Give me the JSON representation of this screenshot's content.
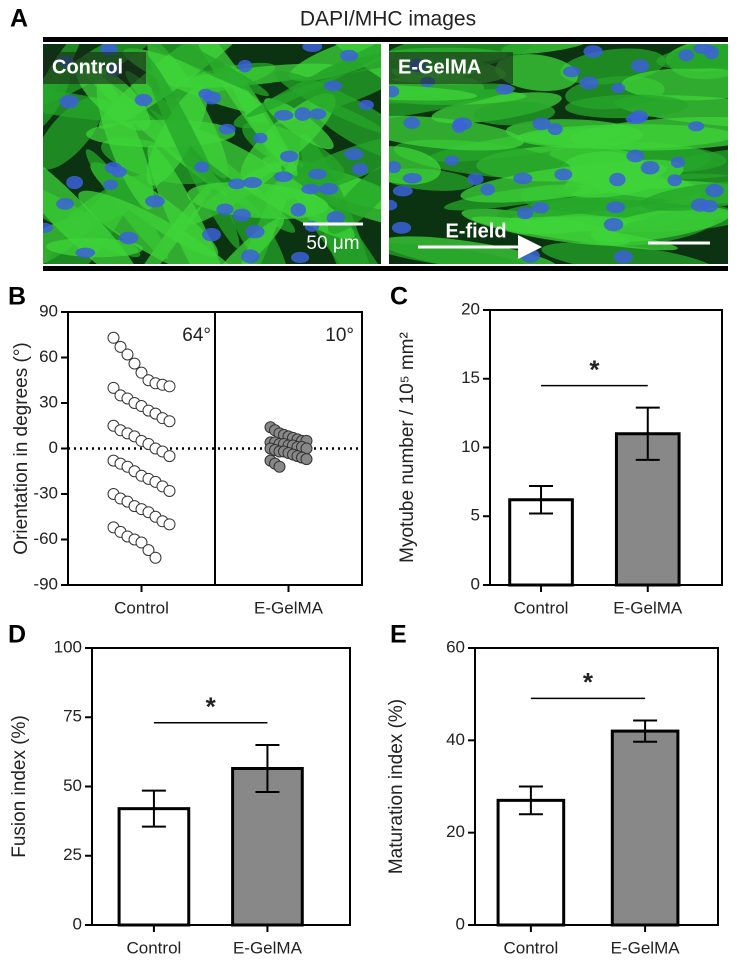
{
  "figure": {
    "panel": "A",
    "title": "DAPI/MHC images",
    "images": [
      "Control",
      "E-GelMA"
    ],
    "scale_bar": "50 μm",
    "arrow": "E-field"
  },
  "chart_data": [
    {
      "type": "strip",
      "panel": "B",
      "y_label": "Orientation in degrees (°)",
      "categories": [
        "Control",
        "E-GelMA"
      ],
      "values": [
        [
          73,
          67,
          62,
          56,
          50,
          45,
          43,
          42,
          41,
          40,
          35,
          33,
          30,
          28,
          25,
          23,
          20,
          18,
          15,
          12,
          10,
          8,
          5,
          3,
          0,
          -2,
          -5,
          -8,
          -10,
          -12,
          -15,
          -18,
          -20,
          -22,
          -25,
          -28,
          -30,
          -33,
          -35,
          -38,
          -40,
          -42,
          -45,
          -48,
          -50,
          -52,
          -55,
          -58,
          -60,
          -62,
          -67,
          -72
        ],
        [
          14,
          12,
          10,
          9,
          8,
          7,
          6,
          5,
          5,
          4,
          4,
          3,
          3,
          2,
          2,
          1,
          1,
          0,
          0,
          -1,
          -2,
          -2,
          -3,
          -4,
          -5,
          -6,
          -7,
          -8,
          -10,
          -12
        ]
      ],
      "colors": [
        "#ffffff",
        "#888888"
      ],
      "annotations": [
        "64°",
        "10°"
      ],
      "hline": 0,
      "ylim": [
        -90,
        90
      ],
      "yticks": [
        -90,
        -60,
        -30,
        0,
        30,
        60,
        90
      ]
    },
    {
      "type": "bar",
      "panel": "C",
      "y_label": "Myotube number / 10⁵ mm²",
      "categories": [
        "Control",
        "E-GelMA"
      ],
      "values": [
        6.2,
        11.0
      ],
      "errors": [
        1.0,
        1.9
      ],
      "colors": [
        "#ffffff",
        "#888888"
      ],
      "significance": "*",
      "ylim": [
        0,
        20
      ],
      "yticks": [
        0,
        5,
        10,
        15,
        20
      ]
    },
    {
      "type": "bar",
      "panel": "D",
      "y_label": "Fusion index (%)",
      "categories": [
        "Control",
        "E-GelMA"
      ],
      "values": [
        42,
        56.5
      ],
      "errors": [
        6.5,
        8.5
      ],
      "colors": [
        "#ffffff",
        "#888888"
      ],
      "significance": "*",
      "ylim": [
        0,
        100
      ],
      "yticks": [
        0,
        25,
        50,
        75,
        100
      ]
    },
    {
      "type": "bar",
      "panel": "E",
      "y_label": "Maturation index (%)",
      "categories": [
        "Control",
        "E-GelMA"
      ],
      "values": [
        27,
        42
      ],
      "errors": [
        3,
        2.3
      ],
      "colors": [
        "#ffffff",
        "#888888"
      ],
      "significance": "*",
      "ylim": [
        0,
        60
      ],
      "yticks": [
        0,
        20,
        40,
        60
      ]
    }
  ]
}
